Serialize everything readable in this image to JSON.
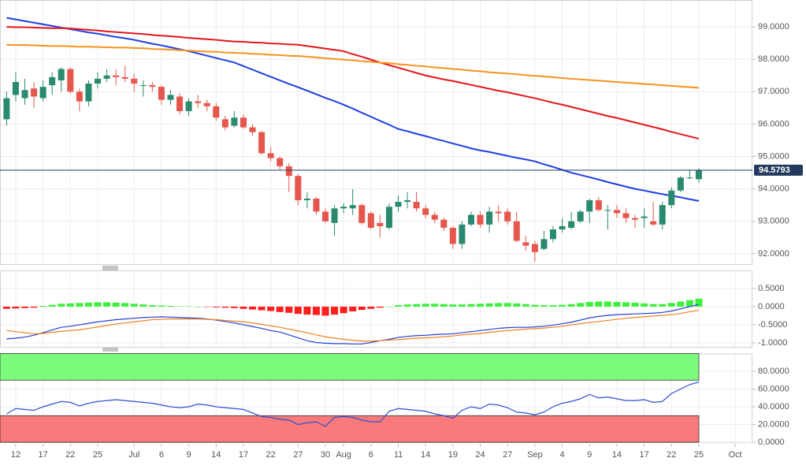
{
  "chart_data": [
    {
      "type": "candlestick",
      "categories": [
        null,
        "12",
        null,
        null,
        "17",
        null,
        null,
        "22",
        null,
        null,
        "25",
        null,
        null,
        null,
        "Jul",
        null,
        null,
        "6",
        null,
        null,
        "9",
        null,
        null,
        "14",
        null,
        null,
        "17",
        null,
        null,
        "22",
        null,
        null,
        "27",
        null,
        null,
        "30",
        null,
        "Aug",
        null,
        null,
        "6",
        null,
        null,
        "11",
        null,
        null,
        "14",
        null,
        null,
        "19",
        null,
        null,
        "24",
        null,
        null,
        "27",
        null,
        null,
        "Sep",
        null,
        null,
        "4",
        null,
        null,
        "9",
        null,
        null,
        "14",
        null,
        null,
        "17",
        null,
        null,
        "22",
        null,
        null,
        "25",
        null,
        null,
        null,
        "Oct",
        null
      ],
      "open": [
        96.15,
        96.9,
        96.8,
        97.1,
        96.8,
        97.2,
        97.35,
        97.7,
        97.0,
        96.7,
        97.25,
        97.4,
        97.5,
        97.45,
        97.4,
        97.2,
        97.2,
        97.15,
        96.75,
        96.85,
        96.4,
        96.7,
        96.65,
        96.55,
        96.15,
        95.95,
        96.2,
        95.9,
        95.75,
        95.1,
        94.95,
        94.7,
        94.4,
        93.65,
        93.7,
        93.3,
        92.95,
        93.4,
        93.4,
        93.5,
        93.25,
        92.95,
        92.8,
        93.45,
        93.6,
        93.6,
        93.4,
        93.2,
        93.05,
        92.8,
        92.3,
        92.9,
        93.2,
        92.9,
        93.3,
        93.3,
        93.0,
        92.35,
        92.3,
        92.15,
        92.45,
        92.75,
        92.8,
        93.0,
        93.3,
        93.65,
        93.35,
        93.35,
        93.25,
        93.1,
        93.1,
        93.0,
        92.9,
        93.5,
        93.95,
        94.35,
        94.3,
        null,
        null,
        null,
        null,
        null
      ],
      "high": [
        97.0,
        97.6,
        97.4,
        97.3,
        97.35,
        97.6,
        97.75,
        97.75,
        97.1,
        97.35,
        97.6,
        97.7,
        97.7,
        97.8,
        97.55,
        97.35,
        97.3,
        97.2,
        97.05,
        96.95,
        96.8,
        96.9,
        96.75,
        96.65,
        96.25,
        96.4,
        96.3,
        96.0,
        95.8,
        95.3,
        95.0,
        94.8,
        94.45,
        93.9,
        93.75,
        93.4,
        93.5,
        93.55,
        94.0,
        93.55,
        93.3,
        93.2,
        93.55,
        93.8,
        93.9,
        93.9,
        93.5,
        93.3,
        93.1,
        92.85,
        93.0,
        93.3,
        93.3,
        93.45,
        93.5,
        93.4,
        93.3,
        92.55,
        92.4,
        92.7,
        92.85,
        93.1,
        93.3,
        93.35,
        93.7,
        93.75,
        93.5,
        93.5,
        93.4,
        93.2,
        93.4,
        93.6,
        93.6,
        94.05,
        94.4,
        94.6,
        94.65,
        null,
        null,
        null,
        null,
        null
      ],
      "low": [
        95.95,
        96.7,
        96.6,
        96.5,
        96.7,
        96.9,
        97.0,
        96.95,
        96.4,
        96.55,
        97.1,
        97.3,
        97.2,
        97.3,
        97.0,
        96.85,
        97.0,
        96.6,
        96.6,
        96.3,
        96.25,
        96.5,
        96.4,
        96.1,
        95.8,
        95.9,
        95.85,
        95.65,
        95.05,
        94.85,
        94.6,
        93.9,
        93.5,
        93.4,
        93.2,
        92.95,
        92.55,
        93.25,
        93.2,
        92.9,
        92.75,
        92.5,
        92.75,
        93.3,
        93.4,
        93.3,
        93.1,
        92.95,
        92.7,
        92.15,
        92.15,
        92.85,
        92.8,
        92.65,
        93.0,
        92.9,
        92.35,
        92.1,
        91.75,
        92.1,
        92.35,
        92.65,
        92.75,
        92.95,
        92.95,
        93.3,
        92.75,
        93.1,
        92.95,
        92.8,
        92.8,
        92.85,
        92.75,
        93.4,
        93.9,
        94.3,
        94.2,
        null,
        null,
        null,
        null,
        null
      ],
      "close": [
        96.8,
        97.3,
        97.05,
        96.85,
        97.15,
        97.45,
        97.7,
        97.0,
        96.7,
        97.25,
        97.4,
        97.5,
        97.45,
        97.4,
        97.25,
        97.2,
        97.15,
        96.75,
        96.9,
        96.4,
        96.7,
        96.65,
        96.55,
        96.2,
        95.9,
        96.2,
        95.9,
        95.75,
        95.1,
        94.95,
        94.7,
        94.4,
        93.65,
        93.7,
        93.3,
        93.0,
        93.4,
        93.45,
        93.5,
        92.95,
        92.8,
        92.85,
        93.45,
        93.6,
        93.65,
        93.4,
        93.2,
        93.05,
        92.8,
        92.3,
        92.9,
        93.2,
        92.9,
        93.3,
        93.25,
        93.0,
        92.4,
        92.25,
        92.05,
        92.45,
        92.75,
        92.85,
        93.0,
        93.3,
        93.65,
        93.35,
        93.35,
        93.25,
        93.1,
        93.05,
        93.15,
        92.9,
        93.5,
        93.95,
        94.35,
        94.35,
        94.58,
        null,
        null,
        null,
        null,
        null
      ],
      "up_color": "#2a8a6f",
      "down_color": "#e5574c",
      "series": [
        {
          "color": "#1f3fe0",
          "values": [
            99.28,
            99.23,
            99.18,
            99.13,
            99.08,
            99.03,
            98.98,
            98.93,
            98.88,
            98.83,
            98.79,
            98.74,
            98.69,
            98.65,
            98.6,
            98.54,
            98.48,
            98.43,
            98.37,
            98.31,
            98.25,
            98.18,
            98.11,
            98.04,
            97.97,
            97.9,
            97.79,
            97.68,
            97.57,
            97.46,
            97.35,
            97.24,
            97.14,
            97.03,
            96.92,
            96.81,
            96.71,
            96.6,
            96.48,
            96.35,
            96.23,
            96.1,
            95.98,
            95.85,
            95.78,
            95.7,
            95.63,
            95.55,
            95.48,
            95.4,
            95.33,
            95.25,
            95.19,
            95.14,
            95.08,
            95.02,
            94.96,
            94.91,
            94.85,
            94.76,
            94.68,
            94.59,
            94.5,
            94.43,
            94.36,
            94.29,
            94.21,
            94.14,
            94.07,
            94.0,
            93.95,
            93.89,
            93.84,
            93.79,
            93.74,
            93.68,
            93.63,
            null,
            null,
            null,
            null,
            null
          ]
        },
        {
          "color": "#e3171b",
          "values": [
            99.0,
            98.99,
            98.99,
            98.98,
            98.97,
            98.96,
            98.96,
            98.95,
            98.93,
            98.91,
            98.89,
            98.86,
            98.84,
            98.82,
            98.8,
            98.78,
            98.75,
            98.73,
            98.71,
            98.69,
            98.66,
            98.64,
            98.62,
            98.6,
            98.57,
            98.55,
            98.54,
            98.52,
            98.51,
            98.49,
            98.48,
            98.46,
            98.45,
            98.41,
            98.37,
            98.33,
            98.29,
            98.25,
            98.16,
            98.08,
            97.99,
            97.9,
            97.82,
            97.74,
            97.66,
            97.58,
            97.5,
            97.44,
            97.38,
            97.33,
            97.27,
            97.21,
            97.15,
            97.09,
            97.03,
            96.98,
            96.92,
            96.86,
            96.8,
            96.73,
            96.66,
            96.6,
            96.53,
            96.46,
            96.39,
            96.32,
            96.25,
            96.19,
            96.12,
            96.05,
            95.98,
            95.91,
            95.84,
            95.76,
            95.69,
            95.62,
            95.55,
            null,
            null,
            null,
            null,
            null
          ]
        },
        {
          "color": "#f7931e",
          "values": [
            98.45,
            98.44,
            98.44,
            98.43,
            98.42,
            98.41,
            98.41,
            98.4,
            98.39,
            98.39,
            98.38,
            98.37,
            98.36,
            98.36,
            98.35,
            98.34,
            98.32,
            98.31,
            98.3,
            98.28,
            98.27,
            98.25,
            98.24,
            98.23,
            98.21,
            98.2,
            98.19,
            98.17,
            98.16,
            98.14,
            98.13,
            98.11,
            98.1,
            98.08,
            98.06,
            98.03,
            98.01,
            97.99,
            97.97,
            97.94,
            97.92,
            97.9,
            97.88,
            97.85,
            97.83,
            97.8,
            97.78,
            97.75,
            97.73,
            97.7,
            97.68,
            97.65,
            97.63,
            97.6,
            97.58,
            97.56,
            97.54,
            97.51,
            97.49,
            97.47,
            97.45,
            97.42,
            97.4,
            97.38,
            97.36,
            97.34,
            97.32,
            97.3,
            97.28,
            97.26,
            97.24,
            97.22,
            97.2,
            97.18,
            97.16,
            97.14,
            97.12,
            null,
            null,
            null,
            null,
            null
          ]
        }
      ],
      "last_price": 94.5793,
      "last_price_color": "#233a5e",
      "ylim": [
        91.68,
        99.83
      ],
      "yticks": [
        {
          "value": 92,
          "label": "92.0000"
        },
        {
          "value": 93,
          "label": "93.0000"
        },
        {
          "value": 94,
          "label": "94.0000"
        },
        {
          "value": 95,
          "label": "95.0000"
        },
        {
          "value": 96,
          "label": "96.0000"
        },
        {
          "value": 97,
          "label": "97.0000"
        },
        {
          "value": 98,
          "label": "98.0000"
        },
        {
          "value": 99,
          "label": "99.0000"
        }
      ],
      "grid": true
    },
    {
      "type": "macd",
      "values": [
        -0.06,
        -0.05,
        -0.04,
        -0.03,
        0.02,
        0.05,
        0.08,
        0.09,
        0.1,
        0.11,
        0.12,
        0.12,
        0.11,
        0.1,
        0.08,
        0.06,
        0.04,
        0.03,
        0.02,
        0.01,
        0.01,
        0.0,
        -0.01,
        -0.02,
        -0.03,
        -0.04,
        -0.06,
        -0.08,
        -0.1,
        -0.12,
        -0.15,
        -0.17,
        -0.2,
        -0.22,
        -0.23,
        -0.25,
        -0.22,
        -0.18,
        -0.13,
        -0.09,
        -0.06,
        -0.03,
        0.0,
        0.04,
        0.06,
        0.07,
        0.08,
        0.08,
        0.07,
        0.06,
        0.06,
        0.07,
        0.08,
        0.09,
        0.1,
        0.1,
        0.09,
        0.07,
        0.05,
        0.04,
        0.04,
        0.05,
        0.07,
        0.1,
        0.13,
        0.14,
        0.14,
        0.13,
        0.12,
        0.11,
        0.09,
        0.07,
        0.07,
        0.1,
        0.14,
        0.18,
        0.22,
        null,
        null,
        null,
        null,
        null
      ],
      "positive_color": "#3cf03c",
      "negative_color": "#ff1e1e",
      "series": [
        {
          "color": "#2541d6",
          "values": [
            -0.89,
            -0.87,
            -0.84,
            -0.79,
            -0.72,
            -0.64,
            -0.57,
            -0.54,
            -0.5,
            -0.46,
            -0.42,
            -0.39,
            -0.36,
            -0.34,
            -0.32,
            -0.3,
            -0.29,
            -0.28,
            -0.29,
            -0.3,
            -0.31,
            -0.32,
            -0.34,
            -0.37,
            -0.41,
            -0.45,
            -0.5,
            -0.55,
            -0.6,
            -0.66,
            -0.7,
            -0.78,
            -0.86,
            -0.94,
            -0.99,
            -1.01,
            -1.02,
            -1.02,
            -1.03,
            -1.03,
            -0.99,
            -0.94,
            -0.9,
            -0.85,
            -0.82,
            -0.8,
            -0.79,
            -0.77,
            -0.76,
            -0.75,
            -0.72,
            -0.69,
            -0.66,
            -0.63,
            -0.6,
            -0.58,
            -0.57,
            -0.57,
            -0.56,
            -0.54,
            -0.51,
            -0.47,
            -0.43,
            -0.37,
            -0.31,
            -0.27,
            -0.24,
            -0.22,
            -0.21,
            -0.2,
            -0.19,
            -0.18,
            -0.16,
            -0.12,
            -0.06,
            0.0,
            0.06,
            null,
            null,
            null,
            null,
            null
          ]
        },
        {
          "color": "#f07f1c",
          "values": [
            -0.66,
            -0.69,
            -0.72,
            -0.75,
            -0.74,
            -0.71,
            -0.68,
            -0.66,
            -0.64,
            -0.6,
            -0.56,
            -0.52,
            -0.48,
            -0.45,
            -0.42,
            -0.39,
            -0.36,
            -0.35,
            -0.34,
            -0.34,
            -0.34,
            -0.34,
            -0.35,
            -0.36,
            -0.38,
            -0.4,
            -0.42,
            -0.45,
            -0.49,
            -0.53,
            -0.57,
            -0.62,
            -0.67,
            -0.72,
            -0.78,
            -0.83,
            -0.87,
            -0.9,
            -0.93,
            -0.95,
            -0.95,
            -0.94,
            -0.92,
            -0.91,
            -0.89,
            -0.87,
            -0.86,
            -0.85,
            -0.83,
            -0.81,
            -0.78,
            -0.76,
            -0.74,
            -0.71,
            -0.68,
            -0.66,
            -0.64,
            -0.62,
            -0.61,
            -0.59,
            -0.57,
            -0.54,
            -0.5,
            -0.47,
            -0.44,
            -0.41,
            -0.38,
            -0.35,
            -0.32,
            -0.3,
            -0.28,
            -0.26,
            -0.24,
            -0.22,
            -0.19,
            -0.14,
            -0.1,
            null,
            null,
            null,
            null,
            null
          ]
        }
      ],
      "ylim": [
        -1.11,
        1.0
      ],
      "yticks": [
        {
          "value": -1,
          "label": "-1.0000"
        },
        {
          "value": -0.5,
          "label": "-0.5000"
        },
        {
          "value": 0,
          "label": "0.0000"
        },
        {
          "value": 0.5,
          "label": "0.5000"
        }
      ],
      "grid": true
    },
    {
      "type": "rsi",
      "series": [
        {
          "color": "#2f4fd3",
          "values": [
            32,
            38,
            37,
            36,
            40,
            43,
            46,
            45,
            41,
            44,
            46,
            47,
            48,
            47,
            46,
            45,
            44,
            42,
            40,
            39,
            40,
            43,
            42,
            40,
            39,
            38,
            37,
            33,
            29,
            28,
            26,
            25,
            20,
            22,
            23,
            18,
            28,
            29,
            28,
            25,
            23,
            23,
            35,
            38,
            37,
            36,
            35,
            32,
            30,
            27,
            36,
            40,
            38,
            43,
            42,
            39,
            34,
            33,
            31,
            34,
            40,
            44,
            46,
            49,
            54,
            50,
            51,
            49,
            47,
            47,
            48,
            45,
            46,
            55,
            60,
            65,
            68,
            null,
            null,
            null,
            null,
            null
          ]
        }
      ],
      "bands": [
        {
          "range": [
            70,
            100
          ],
          "color": "#7dfb7d"
        },
        {
          "range": [
            0,
            30
          ],
          "color": "#f87a7a"
        }
      ],
      "ylim": [
        0,
        100
      ],
      "yticks": [
        {
          "value": 0,
          "label": "0.0000"
        },
        {
          "value": 20,
          "label": "20.0000"
        },
        {
          "value": 40,
          "label": "40.0000"
        },
        {
          "value": 60,
          "label": "60.0000"
        },
        {
          "value": 80,
          "label": "80.0000"
        }
      ],
      "grid": true
    }
  ]
}
